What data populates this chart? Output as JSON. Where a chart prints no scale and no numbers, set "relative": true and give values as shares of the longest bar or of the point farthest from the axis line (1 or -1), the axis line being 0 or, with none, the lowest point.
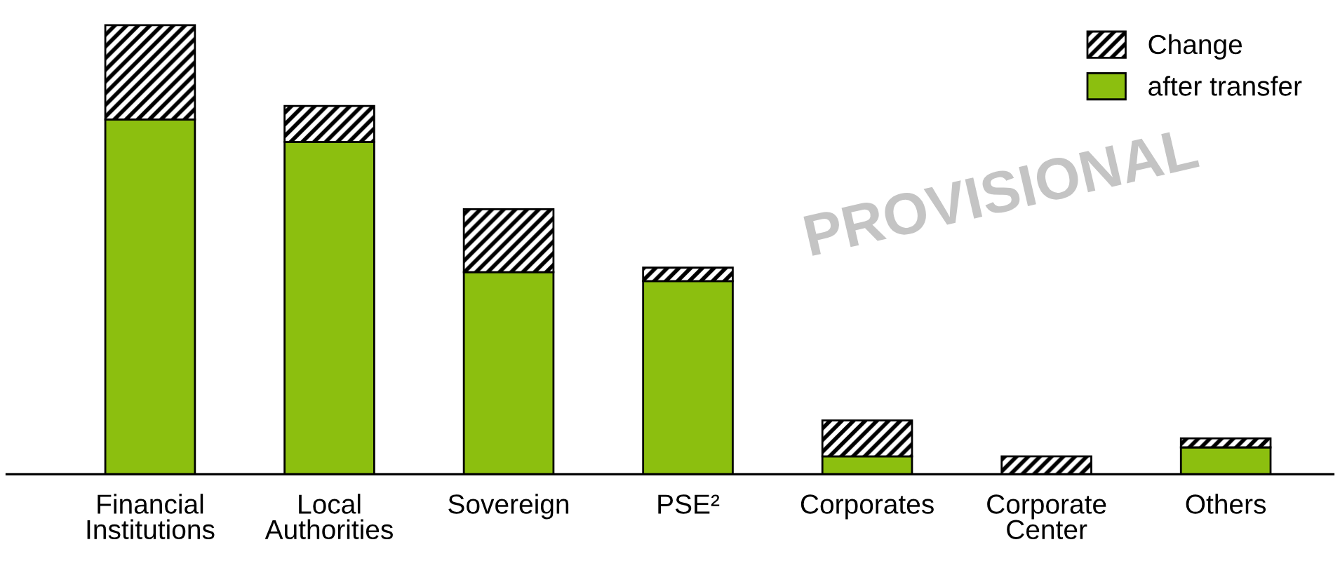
{
  "chart_data": {
    "type": "bar",
    "stacked": true,
    "relative": true,
    "categories": [
      "Financial Institutions",
      "Local Authorities",
      "Sovereign",
      "PSE²",
      "Corporates",
      "Corporate Center",
      "Others"
    ],
    "series": [
      {
        "name": "after transfer",
        "color": "#8cbf0f",
        "values": [
          0.79,
          0.74,
          0.45,
          0.43,
          0.04,
          0,
          0.06
        ]
      },
      {
        "name": "Change",
        "color": "#000000",
        "values": [
          0.21,
          0.08,
          0.14,
          0.03,
          0.08,
          0.04,
          0.02
        ]
      }
    ],
    "legend": "top right",
    "grid": false,
    "annotations": [
      "PROVISIONAL"
    ]
  }
}
